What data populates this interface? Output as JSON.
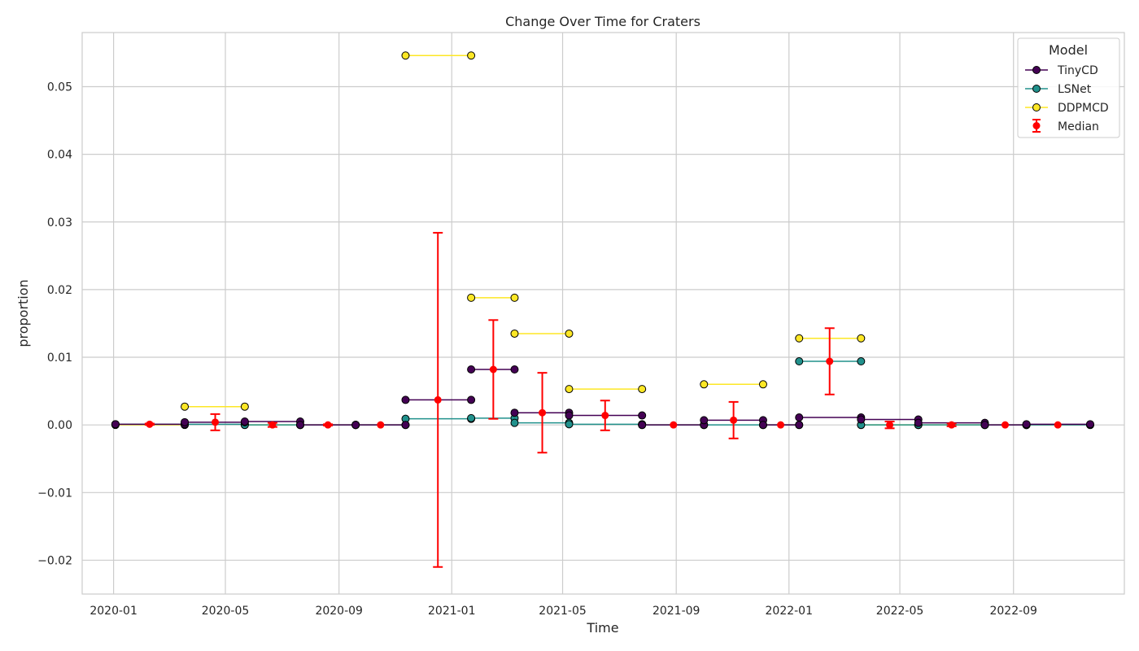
{
  "chart_data": {
    "type": "line",
    "title": "Change Over Time for Craters",
    "xlabel": "Time",
    "ylabel": "proportion",
    "xlim": [
      "2019-11-28",
      "2022-12-30"
    ],
    "ylim": [
      -0.025,
      0.058
    ],
    "x_ticks": [
      "2020-01",
      "2020-05",
      "2020-09",
      "2021-01",
      "2021-05",
      "2021-09",
      "2022-01",
      "2022-05",
      "2022-09"
    ],
    "y_ticks": [
      -0.02,
      -0.01,
      0.0,
      0.01,
      0.02,
      0.03,
      0.04,
      0.05
    ],
    "y_tick_labels": [
      "−0.02",
      "−0.01",
      "0.00",
      "0.01",
      "0.02",
      "0.03",
      "0.04",
      "0.05"
    ],
    "grid": true,
    "legend": {
      "title": "Model",
      "position": "top-right",
      "entries": [
        "TinyCD",
        "LSNet",
        "DDPMCD",
        "Median"
      ]
    },
    "series": [
      {
        "name": "TinyCD",
        "color": "#440154",
        "segments": [
          [
            [
              "2020-01-03",
              0.0001
            ],
            [
              "2020-03-18",
              0.0001
            ]
          ],
          [
            [
              "2020-03-18",
              0.0004
            ],
            [
              "2020-05-22",
              0.0004
            ]
          ],
          [
            [
              "2020-05-22",
              0.0005
            ],
            [
              "2020-07-21",
              0.0005
            ]
          ],
          [
            [
              "2020-07-21",
              0.0
            ],
            [
              "2020-09-19",
              0.0
            ]
          ],
          [
            [
              "2020-09-19",
              0.0
            ],
            [
              "2020-11-12",
              0.0
            ]
          ],
          [
            [
              "2020-11-12",
              0.0037
            ],
            [
              "2021-01-22",
              0.0037
            ]
          ],
          [
            [
              "2021-01-22",
              0.0082
            ],
            [
              "2021-03-10",
              0.0082
            ]
          ],
          [
            [
              "2021-03-10",
              0.0018
            ],
            [
              "2021-05-08",
              0.0018
            ]
          ],
          [
            [
              "2021-05-08",
              0.0014
            ],
            [
              "2021-07-26",
              0.0014
            ]
          ],
          [
            [
              "2021-07-26",
              0.0
            ],
            [
              "2021-10-01",
              0.0
            ]
          ],
          [
            [
              "2021-10-01",
              0.0007
            ],
            [
              "2021-12-04",
              0.0007
            ]
          ],
          [
            [
              "2021-12-04",
              0.0
            ],
            [
              "2022-01-12",
              0.0
            ]
          ],
          [
            [
              "2022-01-12",
              0.0011
            ],
            [
              "2022-03-20",
              0.0011
            ]
          ],
          [
            [
              "2022-03-20",
              0.0008
            ],
            [
              "2022-05-21",
              0.0008
            ]
          ],
          [
            [
              "2022-05-21",
              0.0003
            ],
            [
              "2022-08-01",
              0.0003
            ]
          ],
          [
            [
              "2022-08-01",
              0.0
            ],
            [
              "2022-09-15",
              0.0
            ]
          ],
          [
            [
              "2022-09-15",
              0.0001
            ],
            [
              "2022-11-23",
              0.0001
            ]
          ]
        ]
      },
      {
        "name": "LSNet",
        "color": "#21918c",
        "segments": [
          [
            [
              "2020-01-03",
              0.0001
            ],
            [
              "2020-03-18",
              0.0001
            ]
          ],
          [
            [
              "2020-03-18",
              0.0001
            ],
            [
              "2020-05-22",
              0.0001
            ]
          ],
          [
            [
              "2020-05-22",
              0.0
            ],
            [
              "2020-07-21",
              0.0
            ]
          ],
          [
            [
              "2020-07-21",
              0.0
            ],
            [
              "2020-09-19",
              0.0
            ]
          ],
          [
            [
              "2020-09-19",
              0.0
            ],
            [
              "2020-11-12",
              0.0
            ]
          ],
          [
            [
              "2020-11-12",
              0.0009
            ],
            [
              "2021-01-22",
              0.0009
            ]
          ],
          [
            [
              "2021-01-22",
              0.001
            ],
            [
              "2021-03-10",
              0.001
            ]
          ],
          [
            [
              "2021-03-10",
              0.0003
            ],
            [
              "2021-05-08",
              0.0003
            ]
          ],
          [
            [
              "2021-05-08",
              0.0001
            ],
            [
              "2021-07-26",
              0.0001
            ]
          ],
          [
            [
              "2021-07-26",
              0.0
            ],
            [
              "2021-10-01",
              0.0
            ]
          ],
          [
            [
              "2021-10-01",
              0.0
            ],
            [
              "2021-12-04",
              0.0
            ]
          ],
          [
            [
              "2021-12-04",
              0.0
            ],
            [
              "2022-01-12",
              0.0
            ]
          ],
          [
            [
              "2022-01-12",
              0.0094
            ],
            [
              "2022-03-20",
              0.0094
            ]
          ],
          [
            [
              "2022-03-20",
              0.0
            ],
            [
              "2022-05-21",
              0.0
            ]
          ],
          [
            [
              "2022-05-21",
              0.0
            ],
            [
              "2022-08-01",
              0.0
            ]
          ],
          [
            [
              "2022-08-01",
              0.0
            ],
            [
              "2022-09-15",
              0.0
            ]
          ],
          [
            [
              "2022-09-15",
              0.0
            ],
            [
              "2022-11-23",
              0.0
            ]
          ]
        ]
      },
      {
        "name": "DDPMCD",
        "color": "#fde725",
        "segments": [
          [
            [
              "2020-01-03",
              0.0
            ],
            [
              "2020-03-18",
              0.0
            ]
          ],
          [
            [
              "2020-03-18",
              0.0027
            ],
            [
              "2020-05-22",
              0.0027
            ]
          ],
          [
            [
              "2020-05-22",
              0.0
            ],
            [
              "2020-07-21",
              0.0
            ]
          ],
          [
            [
              "2020-07-21",
              0.0
            ],
            [
              "2020-09-19",
              0.0
            ]
          ],
          [
            [
              "2020-09-19",
              0.0
            ],
            [
              "2020-11-12",
              0.0
            ]
          ],
          [
            [
              "2020-11-12",
              0.0546
            ],
            [
              "2021-01-22",
              0.0546
            ]
          ],
          [
            [
              "2021-01-22",
              0.0188
            ],
            [
              "2021-03-10",
              0.0188
            ]
          ],
          [
            [
              "2021-03-10",
              0.0135
            ],
            [
              "2021-05-08",
              0.0135
            ]
          ],
          [
            [
              "2021-05-08",
              0.0053
            ],
            [
              "2021-07-26",
              0.0053
            ]
          ],
          [
            [
              "2021-07-26",
              0.0
            ],
            [
              "2021-10-01",
              0.0
            ]
          ],
          [
            [
              "2021-10-01",
              0.006
            ],
            [
              "2021-12-04",
              0.006
            ]
          ],
          [
            [
              "2021-12-04",
              0.0
            ],
            [
              "2022-01-12",
              0.0
            ]
          ],
          [
            [
              "2022-01-12",
              0.0128
            ],
            [
              "2022-03-20",
              0.0128
            ]
          ],
          [
            [
              "2022-03-20",
              0.0
            ],
            [
              "2022-05-21",
              0.0
            ]
          ],
          [
            [
              "2022-05-21",
              0.0
            ],
            [
              "2022-08-01",
              0.0
            ]
          ],
          [
            [
              "2022-08-01",
              0.0
            ],
            [
              "2022-09-15",
              0.0
            ]
          ],
          [
            [
              "2022-09-15",
              0.0
            ],
            [
              "2022-11-23",
              0.0
            ]
          ]
        ]
      }
    ],
    "median": {
      "name": "Median",
      "color": "#ff0000",
      "points": [
        {
          "x": "2020-02-09",
          "y": 0.0001,
          "err": 0.0001
        },
        {
          "x": "2020-04-20",
          "y": 0.0004,
          "err": 0.0012
        },
        {
          "x": "2020-06-21",
          "y": 0.0,
          "err": 0.0003
        },
        {
          "x": "2020-08-20",
          "y": 0.0,
          "err": 0.0001
        },
        {
          "x": "2020-10-16",
          "y": 0.0,
          "err": 0.0
        },
        {
          "x": "2020-12-17",
          "y": 0.0037,
          "err": 0.0247
        },
        {
          "x": "2021-02-15",
          "y": 0.0082,
          "err": 0.0073
        },
        {
          "x": "2021-04-09",
          "y": 0.0018,
          "err": 0.0059
        },
        {
          "x": "2021-06-16",
          "y": 0.0014,
          "err": 0.0022
        },
        {
          "x": "2021-08-29",
          "y": 0.0,
          "err": 0.0
        },
        {
          "x": "2021-11-02",
          "y": 0.0007,
          "err": 0.0027
        },
        {
          "x": "2021-12-23",
          "y": 0.0,
          "err": 0.0
        },
        {
          "x": "2022-02-14",
          "y": 0.0094,
          "err": 0.0049
        },
        {
          "x": "2022-04-20",
          "y": 0.0,
          "err": 0.0005
        },
        {
          "x": "2022-06-26",
          "y": 0.0,
          "err": 0.0002
        },
        {
          "x": "2022-08-23",
          "y": 0.0,
          "err": 0.0
        },
        {
          "x": "2022-10-19",
          "y": 0.0,
          "err": 0.0
        }
      ]
    }
  }
}
